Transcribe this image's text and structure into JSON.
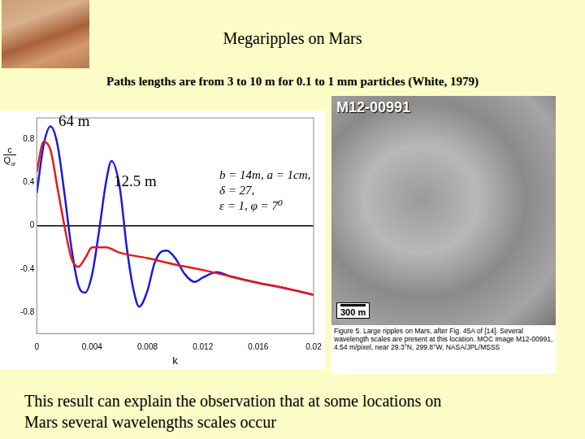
{
  "title": "Megaripples on Mars",
  "subtitle": "Paths lengths are from 3 to 10 m for 0.1 to 1 mm particles (White, 1979)",
  "chart_data": {
    "type": "line",
    "y_label": {
      "numerator": "c",
      "denominator": "Q",
      "subscript": "or"
    },
    "x_label": "k",
    "xlim": [
      0,
      0.02
    ],
    "xticks": [
      0,
      0.004,
      0.008,
      0.012,
      0.016,
      0.02
    ],
    "ylim": [
      -1,
      1
    ],
    "yticks": [
      -0.8,
      -0.4,
      0,
      0.4,
      0.8
    ],
    "series": [
      {
        "color": "#e41a1a",
        "x": [
          0,
          0.0005,
          0.001,
          0.0015,
          0.002,
          0.0025,
          0.003,
          0.0035,
          0.004,
          0.005,
          0.006,
          0.008,
          0.01,
          0.012,
          0.014,
          0.016,
          0.018,
          0.02
        ],
        "values": [
          0.5,
          0.78,
          0.7,
          0.35,
          0.0,
          -0.3,
          -0.38,
          -0.3,
          -0.2,
          -0.2,
          -0.25,
          -0.3,
          -0.36,
          -0.41,
          -0.47,
          -0.53,
          -0.58,
          -0.64
        ]
      },
      {
        "color": "#1a1ae0",
        "x": [
          0,
          0.0005,
          0.001,
          0.0015,
          0.002,
          0.0025,
          0.003,
          0.0035,
          0.004,
          0.0045,
          0.005,
          0.0054,
          0.006,
          0.0065,
          0.007,
          0.0074,
          0.008,
          0.0085,
          0.009,
          0.0094,
          0.01,
          0.0107,
          0.0114,
          0.012,
          0.013,
          0.014,
          0.016,
          0.018,
          0.02
        ],
        "values": [
          0.3,
          0.75,
          0.92,
          0.75,
          0.3,
          -0.2,
          -0.55,
          -0.62,
          -0.45,
          -0.05,
          0.4,
          0.6,
          0.35,
          -0.2,
          -0.6,
          -0.75,
          -0.6,
          -0.35,
          -0.24,
          -0.23,
          -0.3,
          -0.45,
          -0.52,
          -0.48,
          -0.43,
          -0.47,
          -0.53,
          -0.58,
          -0.64
        ]
      }
    ],
    "annotations": [
      "64 m",
      "12.5 m"
    ],
    "parameters": [
      "b = 14m, a = 1cm,",
      "δ = 27,",
      "ε = 1, φ = 7⁰"
    ]
  },
  "image": {
    "label": "M12-00991",
    "scale_bar": "300 m",
    "caption": "Figure 5. Large ripples on Mars, after Fig. 45A of [14]. Several wavelength scales are present at this location. MOC image M12-00991, 4.54 m/pixel, near 29.3°N, 299.8°W. NASA/JPL/MSSS"
  },
  "footer": [
    "This result can explain the observation that at some locations on",
    "Mars several wavelengths scales occur"
  ]
}
